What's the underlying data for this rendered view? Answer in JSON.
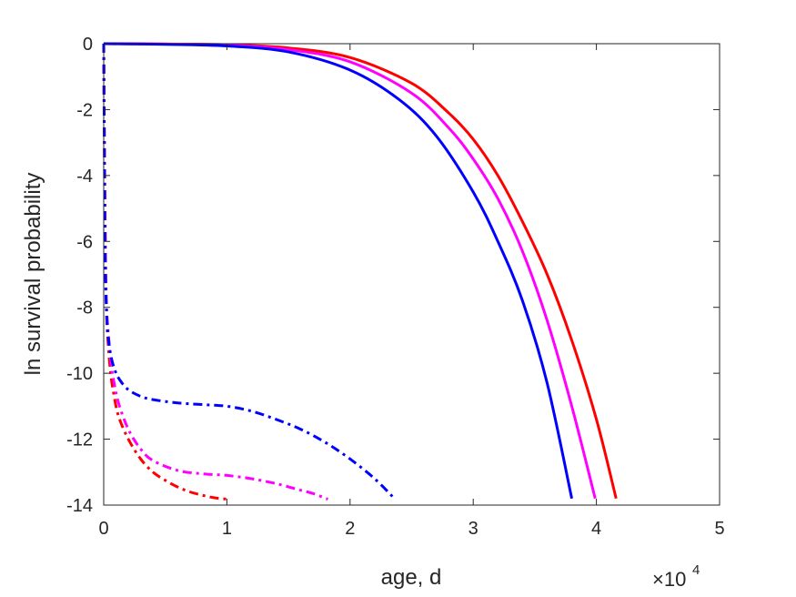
{
  "chart_data": {
    "type": "line",
    "title": "",
    "xlabel": "age, d",
    "ylabel": "ln survival probability",
    "x_multiplier_base": "10",
    "x_multiplier_exponent": "4",
    "xlim": [
      0,
      50000
    ],
    "ylim": [
      -14,
      0
    ],
    "xticks": [
      0,
      10000,
      20000,
      30000,
      40000,
      50000
    ],
    "xtick_labels": [
      "0",
      "1",
      "2",
      "3",
      "4",
      "5"
    ],
    "yticks": [
      0,
      -2,
      -4,
      -6,
      -8,
      -10,
      -12,
      -14
    ],
    "ytick_labels": [
      "0",
      "-2",
      "-4",
      "-6",
      "-8",
      "-10",
      "-12",
      "-14"
    ],
    "grid": false,
    "series": [
      {
        "color": "#ff0000",
        "style": "solid",
        "x": [
          0,
          5000,
          10000,
          15000,
          20000,
          25000,
          28000,
          30000,
          32000,
          34000,
          36000,
          38000,
          40000,
          41600
        ],
        "y": [
          0,
          -0.01,
          -0.03,
          -0.13,
          -0.42,
          -1.2,
          -2.1,
          -2.9,
          -4.0,
          -5.4,
          -7.0,
          -9.0,
          -11.4,
          -13.8
        ]
      },
      {
        "color": "#ff00ff",
        "style": "solid",
        "x": [
          0,
          5000,
          10000,
          15000,
          20000,
          25000,
          28000,
          30000,
          32000,
          34000,
          36000,
          38000,
          39900
        ],
        "y": [
          0,
          -0.01,
          -0.04,
          -0.18,
          -0.55,
          -1.5,
          -2.55,
          -3.5,
          -4.7,
          -6.3,
          -8.4,
          -11.0,
          -13.8
        ]
      },
      {
        "color": "#0000ff",
        "style": "solid",
        "x": [
          0,
          5000,
          10000,
          15000,
          20000,
          24000,
          27000,
          30000,
          32000,
          34000,
          36000,
          38000
        ],
        "y": [
          0,
          -0.02,
          -0.07,
          -0.25,
          -0.8,
          -1.7,
          -2.8,
          -4.5,
          -6.0,
          -7.8,
          -10.3,
          -13.8
        ]
      },
      {
        "color": "#ff0000",
        "style": "dashdot",
        "x": [
          0,
          80,
          200,
          400,
          600,
          800,
          1200,
          2000,
          3000,
          4000,
          5000,
          6000,
          7000,
          8000,
          9000,
          10000
        ],
        "y": [
          0,
          -4.0,
          -7.8,
          -9.3,
          -10.1,
          -10.6,
          -11.3,
          -12.0,
          -12.6,
          -13.0,
          -13.25,
          -13.45,
          -13.6,
          -13.7,
          -13.78,
          -13.82
        ]
      },
      {
        "color": "#ff00ff",
        "style": "dashdot",
        "x": [
          0,
          80,
          200,
          400,
          600,
          800,
          1200,
          2000,
          3000,
          4000,
          6000,
          8000,
          10000,
          12000,
          14000,
          16000,
          17000,
          18200
        ],
        "y": [
          0,
          -4.0,
          -7.6,
          -8.9,
          -9.7,
          -10.2,
          -10.9,
          -11.7,
          -12.3,
          -12.65,
          -12.95,
          -13.05,
          -13.1,
          -13.2,
          -13.35,
          -13.55,
          -13.65,
          -13.82
        ]
      },
      {
        "color": "#0000ff",
        "style": "dashdot",
        "x": [
          0,
          50,
          120,
          250,
          400,
          600,
          900,
          1300,
          2000,
          3000,
          4000,
          6000,
          8000,
          10000,
          12000,
          14000,
          16000,
          18000,
          20000,
          22000,
          23600
        ],
        "y": [
          0,
          -3.0,
          -6.5,
          -8.3,
          -9.0,
          -9.5,
          -9.9,
          -10.2,
          -10.5,
          -10.7,
          -10.8,
          -10.9,
          -10.95,
          -11.0,
          -11.15,
          -11.4,
          -11.7,
          -12.1,
          -12.6,
          -13.2,
          -13.8
        ]
      }
    ]
  }
}
